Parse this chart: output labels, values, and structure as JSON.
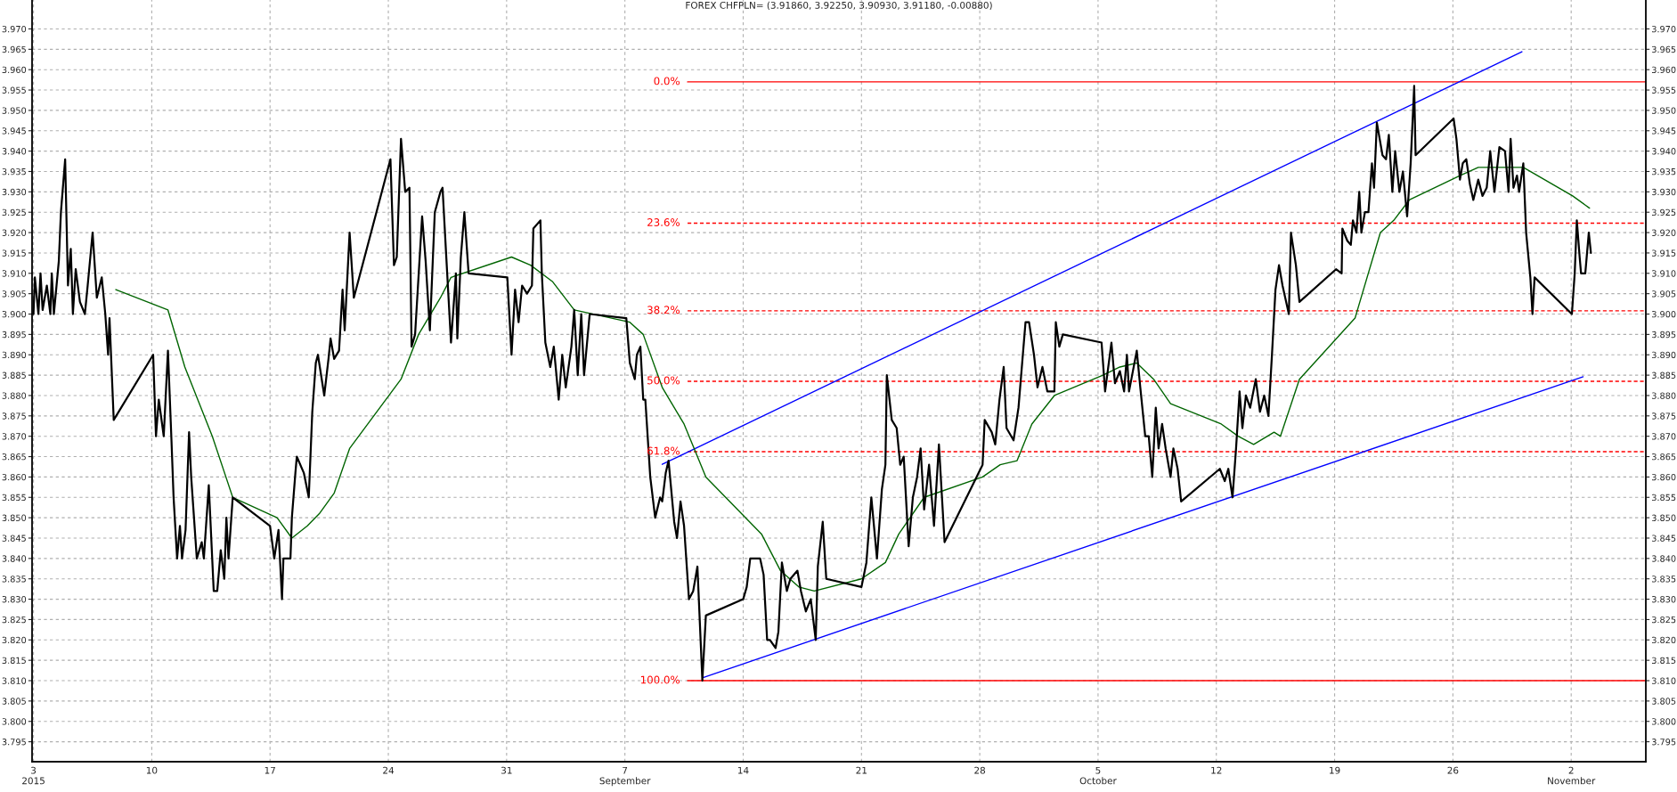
{
  "chart_data": {
    "type": "line",
    "title": "FOREX CHFPLN= (3.91860, 3.92250, 3.90930, 3.91180, -0.00880)",
    "xlim": [
      "2015-08-02T22:00",
      "2015-11-06T10:00"
    ],
    "xticks": [
      {
        "value": "2015-08-03",
        "label": "3\n2015"
      },
      {
        "value": "2015-08-10",
        "label": "10"
      },
      {
        "value": "2015-08-17",
        "label": "17"
      },
      {
        "value": "2015-08-24",
        "label": "24"
      },
      {
        "value": "2015-08-31",
        "label": "31"
      },
      {
        "value": "2015-09-07",
        "label": "7\nSeptember"
      },
      {
        "value": "2015-09-14",
        "label": "14"
      },
      {
        "value": "2015-09-21",
        "label": "21"
      },
      {
        "value": "2015-09-28",
        "label": "28"
      },
      {
        "value": "2015-10-05",
        "label": "5\nOctober"
      },
      {
        "value": "2015-10-12",
        "label": "12"
      },
      {
        "value": "2015-10-19",
        "label": "19"
      },
      {
        "value": "2015-10-26",
        "label": "26"
      },
      {
        "value": "2015-11-02",
        "label": "2\nNovember"
      }
    ],
    "ylim": [
      3.7901,
      3.9771
    ],
    "yticks": [
      {
        "value": 3.795,
        "label": "3.795"
      },
      {
        "value": 3.8,
        "label": "3.800"
      },
      {
        "value": 3.805,
        "label": "3.805"
      },
      {
        "value": 3.81,
        "label": "3.810"
      },
      {
        "value": 3.815,
        "label": "3.815"
      },
      {
        "value": 3.82,
        "label": "3.820"
      },
      {
        "value": 3.825,
        "label": "3.825"
      },
      {
        "value": 3.83,
        "label": "3.830"
      },
      {
        "value": 3.835,
        "label": "3.835"
      },
      {
        "value": 3.84,
        "label": "3.840"
      },
      {
        "value": 3.845,
        "label": "3.845"
      },
      {
        "value": 3.85,
        "label": "3.850"
      },
      {
        "value": 3.855,
        "label": "3.855"
      },
      {
        "value": 3.86,
        "label": "3.860"
      },
      {
        "value": 3.865,
        "label": "3.865"
      },
      {
        "value": 3.87,
        "label": "3.870"
      },
      {
        "value": 3.875,
        "label": "3.875"
      },
      {
        "value": 3.88,
        "label": "3.880"
      },
      {
        "value": 3.885,
        "label": "3.885"
      },
      {
        "value": 3.89,
        "label": "3.890"
      },
      {
        "value": 3.895,
        "label": "3.895"
      },
      {
        "value": 3.9,
        "label": "3.900"
      },
      {
        "value": 3.905,
        "label": "3.905"
      },
      {
        "value": 3.91,
        "label": "3.910"
      },
      {
        "value": 3.915,
        "label": "3.915"
      },
      {
        "value": 3.92,
        "label": "3.920"
      },
      {
        "value": 3.925,
        "label": "3.925"
      },
      {
        "value": 3.93,
        "label": "3.930"
      },
      {
        "value": 3.935,
        "label": "3.935"
      },
      {
        "value": 3.94,
        "label": "3.940"
      },
      {
        "value": 3.945,
        "label": "3.945"
      },
      {
        "value": 3.95,
        "label": "3.950"
      },
      {
        "value": 3.955,
        "label": "3.955"
      },
      {
        "value": 3.96,
        "label": "3.960"
      },
      {
        "value": 3.965,
        "label": "3.965"
      },
      {
        "value": 3.97,
        "label": "3.970"
      }
    ],
    "y2lim": [
      3.7901,
      3.9771
    ],
    "y2ticks": [
      {
        "value": 3.795,
        "label": "3.795"
      },
      {
        "value": 3.8,
        "label": "3.800"
      },
      {
        "value": 3.805,
        "label": "3.805"
      },
      {
        "value": 3.81,
        "label": "3.810"
      },
      {
        "value": 3.815,
        "label": "3.815"
      },
      {
        "value": 3.82,
        "label": "3.820"
      },
      {
        "value": 3.825,
        "label": "3.825"
      },
      {
        "value": 3.83,
        "label": "3.830"
      },
      {
        "value": 3.835,
        "label": "3.835"
      },
      {
        "value": 3.84,
        "label": "3.840"
      },
      {
        "value": 3.845,
        "label": "3.845"
      },
      {
        "value": 3.85,
        "label": "3.850"
      },
      {
        "value": 3.855,
        "label": "3.855"
      },
      {
        "value": 3.86,
        "label": "3.860"
      },
      {
        "value": 3.865,
        "label": "3.865"
      },
      {
        "value": 3.87,
        "label": "3.870"
      },
      {
        "value": 3.875,
        "label": "3.875"
      },
      {
        "value": 3.88,
        "label": "3.880"
      },
      {
        "value": 3.885,
        "label": "3.885"
      },
      {
        "value": 3.89,
        "label": "3.890"
      },
      {
        "value": 3.895,
        "label": "3.895"
      },
      {
        "value": 3.9,
        "label": "3.900"
      },
      {
        "value": 3.905,
        "label": "3.905"
      },
      {
        "value": 3.91,
        "label": "3.910"
      },
      {
        "value": 3.915,
        "label": "3.915"
      },
      {
        "value": 3.92,
        "label": "3.920"
      },
      {
        "value": 3.925,
        "label": "3.925"
      },
      {
        "value": 3.93,
        "label": "3.930"
      },
      {
        "value": 3.935,
        "label": "3.935"
      },
      {
        "value": 3.94,
        "label": "3.940"
      },
      {
        "value": 3.945,
        "label": "3.945"
      },
      {
        "value": 3.95,
        "label": "3.950"
      },
      {
        "value": 3.955,
        "label": "3.955"
      },
      {
        "value": 3.96,
        "label": "3.960"
      },
      {
        "value": 3.965,
        "label": "3.965"
      },
      {
        "value": 3.97,
        "label": "3.970"
      }
    ],
    "grid": true,
    "series": [
      {
        "color": "#ff0000",
        "name": "0.0%",
        "line_style": "solid",
        "x": [
          "2015-09-10T17:00",
          "2015-11-06T10:00"
        ],
        "values": [
          3.957,
          3.957
        ]
      },
      {
        "color": "#ff0000",
        "name": "23.6%",
        "line_style": "dashed",
        "x": [
          "2015-09-10T17:00",
          "2015-11-06T10:00"
        ],
        "values": [
          3.9223,
          3.9223
        ]
      },
      {
        "color": "#ff0000",
        "name": "38.2%",
        "line_style": "dashed",
        "x": [
          "2015-09-10T17:00",
          "2015-11-06T10:00"
        ],
        "values": [
          3.9008,
          3.9008
        ]
      },
      {
        "color": "#ff0000",
        "name": "50.0%",
        "line_style": "dashed",
        "x": [
          "2015-09-10T17:00",
          "2015-11-06T10:00"
        ],
        "values": [
          3.8835,
          3.8835
        ]
      },
      {
        "color": "#ff0000",
        "name": "61.8%",
        "line_style": "dashed",
        "x": [
          "2015-09-10T17:00",
          "2015-11-06T10:00"
        ],
        "values": [
          3.8662,
          3.8662
        ]
      },
      {
        "color": "#ff0000",
        "name": "100.0%",
        "line_style": "solid",
        "x": [
          "2015-09-10T17:00",
          "2015-11-06T10:00"
        ],
        "values": [
          3.81,
          3.81
        ]
      },
      {
        "color": "#0000ff",
        "line_style": "solid",
        "x": [
          "2015-09-09T05:00",
          "2015-10-30T02:00"
        ],
        "values": [
          3.8631,
          3.9644
        ]
      },
      {
        "color": "#0000ff",
        "line_style": "solid",
        "x": [
          "2015-09-11T14:00",
          "2015-11-02T17:00"
        ],
        "values": [
          3.8107,
          3.8846
        ]
      },
      {
        "color": "#006400",
        "line_style": "solid",
        "x": [
          "2015-08-07T21:00",
          "2015-08-10T23:00",
          "2015-08-11T23:00",
          "2015-08-13T14:00",
          "2015-08-14T19:00",
          "2015-08-17T10:00",
          "2015-08-18T07:00",
          "2015-08-19T05:00",
          "2015-08-19T22:00",
          "2015-08-20T19:00",
          "2015-08-21T17:00",
          "2015-08-24T18:00",
          "2015-08-25T19:00",
          "2015-08-27T02:00",
          "2015-08-27T17:00",
          "2015-08-31T07:00",
          "2015-09-01T10:00",
          "2015-09-02T17:00",
          "2015-09-04T00:00",
          "2015-09-07T07:00",
          "2015-09-08T02:00",
          "2015-09-09T05:00",
          "2015-09-10T12:00",
          "2015-09-11T19:00",
          "2015-09-15T02:00",
          "2015-09-16T05:00",
          "2015-09-17T07:00",
          "2015-09-18T05:00",
          "2015-09-21T00:00",
          "2015-09-22T10:00",
          "2015-09-23T05:00",
          "2015-09-24T17:00",
          "2015-09-28T04:00",
          "2015-09-29T05:00",
          "2015-09-30T05:00",
          "2015-10-01T02:00",
          "2015-10-02T10:00",
          "2015-10-05T07:00",
          "2015-10-06T07:00",
          "2015-10-07T07:00",
          "2015-10-08T07:00",
          "2015-10-09T07:00",
          "2015-10-12T07:00",
          "2015-10-13T07:00",
          "2015-10-14T05:00",
          "2015-10-15T10:00",
          "2015-10-15T19:00",
          "2015-10-16T22:00",
          "2015-10-20T05:00",
          "2015-10-21T17:00",
          "2015-10-22T12:00",
          "2015-10-23T10:00",
          "2015-10-26T10:00",
          "2015-10-27T12:00",
          "2015-10-28T12:00",
          "2015-10-30T04:00",
          "2015-11-02T02:00",
          "2015-11-03T02:00"
        ],
        "values": [
          3.906,
          3.901,
          3.887,
          3.87,
          3.855,
          3.85,
          3.845,
          3.848,
          3.851,
          3.856,
          3.867,
          3.884,
          3.895,
          3.904,
          3.909,
          3.914,
          3.912,
          3.908,
          3.901,
          3.898,
          3.895,
          3.882,
          3.873,
          3.86,
          3.846,
          3.837,
          3.833,
          3.832,
          3.835,
          3.839,
          3.846,
          3.855,
          3.86,
          3.863,
          3.864,
          3.873,
          3.88,
          3.885,
          3.887,
          3.888,
          3.884,
          3.878,
          3.873,
          3.87,
          3.868,
          3.871,
          3.87,
          3.884,
          3.899,
          3.92,
          3.923,
          3.928,
          3.934,
          3.936,
          3.936,
          3.936,
          3.929,
          3.926
        ]
      },
      {
        "color": "#000000",
        "line_style": "solid",
        "x": [
          "2015-08-03T00:00",
          "2015-08-03T02:00",
          "2015-08-03T07:00",
          "2015-08-03T10:00",
          "2015-08-03T13:00",
          "2015-08-03T19:00",
          "2015-08-04T00:00",
          "2015-08-04T02:00",
          "2015-08-04T05:00",
          "2015-08-04T12:00",
          "2015-08-04T15:00",
          "2015-08-04T21:00",
          "2015-08-05T01:00",
          "2015-08-05T05:00",
          "2015-08-05T08:00",
          "2015-08-05T12:00",
          "2015-08-05T18:00",
          "2015-08-06T01:00",
          "2015-08-06T05:00",
          "2015-08-06T12:00",
          "2015-08-06T18:00",
          "2015-08-07T01:00",
          "2015-08-07T06:00",
          "2015-08-07T10:00",
          "2015-08-07T12:00",
          "2015-08-07T18:00",
          "2015-08-10T02:00",
          "2015-08-10T06:00",
          "2015-08-10T10:00",
          "2015-08-10T17:00",
          "2015-08-10T23:00",
          "2015-08-11T04:00",
          "2015-08-11T07:00",
          "2015-08-11T12:00",
          "2015-08-11T16:00",
          "2015-08-11T19:00",
          "2015-08-12T00:00",
          "2015-08-12T05:00",
          "2015-08-12T08:00",
          "2015-08-12T16:00",
          "2015-08-12T23:00",
          "2015-08-13T02:00",
          "2015-08-13T09:00",
          "2015-08-13T16:00",
          "2015-08-13T21:00",
          "2015-08-14T02:00",
          "2015-08-14T07:00",
          "2015-08-14T10:00",
          "2015-08-14T13:00",
          "2015-08-14T19:00",
          "2015-08-17T00:00",
          "2015-08-17T06:00",
          "2015-08-17T12:00",
          "2015-08-17T17:00",
          "2015-08-17T19:00",
          "2015-08-18T05:00",
          "2015-08-18T07:00",
          "2015-08-18T12:00",
          "2015-08-18T14:00",
          "2015-08-19T00:00",
          "2015-08-19T07:00",
          "2015-08-19T12:00",
          "2015-08-19T17:00",
          "2015-08-19T20:00",
          "2015-08-20T05:00",
          "2015-08-20T11:00",
          "2015-08-20T14:00",
          "2015-08-20T19:00",
          "2015-08-21T02:00",
          "2015-08-21T07:00",
          "2015-08-21T10:00",
          "2015-08-21T17:00",
          "2015-08-21T23:00",
          "2015-08-24T03:00",
          "2015-08-24T08:00",
          "2015-08-24T12:00",
          "2015-08-24T18:00",
          "2015-08-25T00:00",
          "2015-08-25T06:00",
          "2015-08-25T09:00",
          "2015-08-25T14:00",
          "2015-08-26T00:00",
          "2015-08-26T05:00",
          "2015-08-26T11:00",
          "2015-08-26T18:00",
          "2015-08-27T02:00",
          "2015-08-27T05:00",
          "2015-08-27T10:00",
          "2015-08-27T17:00",
          "2015-08-28T00:00",
          "2015-08-28T02:00",
          "2015-08-28T07:00",
          "2015-08-28T12:00",
          "2015-08-28T18:00",
          "2015-08-31T01:00",
          "2015-08-31T07:00",
          "2015-08-31T12:00",
          "2015-08-31T17:00",
          "2015-08-31T22:00",
          "2015-09-01T05:00",
          "2015-09-01T12:00",
          "2015-09-01T14:00",
          "2015-09-02T00:00",
          "2015-09-02T02:00",
          "2015-09-02T07:00",
          "2015-09-02T14:00",
          "2015-09-02T19:00",
          "2015-09-03T02:00",
          "2015-09-03T07:00",
          "2015-09-03T12:00",
          "2015-09-03T20:00",
          "2015-09-04T00:00",
          "2015-09-04T05:00",
          "2015-09-04T10:00",
          "2015-09-04T14:00",
          "2015-09-04T22:00",
          "2015-09-07T02:00",
          "2015-09-07T07:00",
          "2015-09-07T14:00",
          "2015-09-07T17:00",
          "2015-09-07T22:00",
          "2015-09-08T02:00",
          "2015-09-08T05:00",
          "2015-09-08T12:00",
          "2015-09-08T19:00",
          "2015-09-09T02:00",
          "2015-09-09T05:00",
          "2015-09-09T10:00",
          "2015-09-09T14:00",
          "2015-09-09T22:00",
          "2015-09-10T02:00",
          "2015-09-10T07:00",
          "2015-09-10T12:00",
          "2015-09-10T19:00",
          "2015-09-11T01:00",
          "2015-09-11T07:00",
          "2015-09-11T10:00",
          "2015-09-11T14:00",
          "2015-09-11T19:00",
          "2015-09-14T00:00",
          "2015-09-14T05:00",
          "2015-09-14T10:00",
          "2015-09-14T19:00",
          "2015-09-15T00:00",
          "2015-09-15T05:00",
          "2015-09-15T10:00",
          "2015-09-15T14:00",
          "2015-09-15T22:00",
          "2015-09-16T02:00",
          "2015-09-16T07:00",
          "2015-09-16T14:00",
          "2015-09-16T19:00",
          "2015-09-17T05:00",
          "2015-09-17T10:00",
          "2015-09-17T17:00",
          "2015-09-18T00:00",
          "2015-09-18T07:00",
          "2015-09-18T10:00",
          "2015-09-18T17:00",
          "2015-09-18T22:00",
          "2015-09-21T00:00",
          "2015-09-21T07:00",
          "2015-09-21T14:00",
          "2015-09-21T22:00",
          "2015-09-22T05:00",
          "2015-09-22T10:00",
          "2015-09-22T12:00",
          "2015-09-22T19:00",
          "2015-09-23T02:00",
          "2015-09-23T07:00",
          "2015-09-23T12:00",
          "2015-09-23T19:00",
          "2015-09-24T01:00",
          "2015-09-24T07:00",
          "2015-09-24T12:00",
          "2015-09-24T17:00",
          "2015-09-25T00:00",
          "2015-09-25T07:00",
          "2015-09-25T14:00",
          "2015-09-25T22:00",
          "2015-09-28T04:00",
          "2015-09-28T07:00",
          "2015-09-28T17:00",
          "2015-09-28T22:00",
          "2015-09-29T04:00",
          "2015-09-29T10:00",
          "2015-09-29T14:00",
          "2015-09-30T00:00",
          "2015-09-30T07:00",
          "2015-09-30T17:00",
          "2015-09-30T22:00",
          "2015-10-01T05:00",
          "2015-10-01T10:00",
          "2015-10-01T17:00",
          "2015-10-02T00:00",
          "2015-10-02T10:00",
          "2015-10-02T12:00",
          "2015-10-02T17:00",
          "2015-10-02T22:00",
          "2015-10-05T05:00",
          "2015-10-05T10:00",
          "2015-10-05T19:00",
          "2015-10-06T00:00",
          "2015-10-06T07:00",
          "2015-10-06T13:00",
          "2015-10-06T17:00",
          "2015-10-06T20:00",
          "2015-10-07T07:00",
          "2015-10-07T12:00",
          "2015-10-07T19:00",
          "2015-10-08T00:00",
          "2015-10-08T05:00",
          "2015-10-08T10:00",
          "2015-10-08T14:00",
          "2015-10-08T19:00",
          "2015-10-09T00:00",
          "2015-10-09T07:00",
          "2015-10-09T11:00",
          "2015-10-09T17:00",
          "2015-10-09T22:00",
          "2015-10-12T05:00",
          "2015-10-12T12:00",
          "2015-10-12T17:00",
          "2015-10-12T23:00",
          "2015-10-13T04:00",
          "2015-10-13T09:00",
          "2015-10-13T13:00",
          "2015-10-13T18:00",
          "2015-10-14T00:00",
          "2015-10-14T08:00",
          "2015-10-14T14:00",
          "2015-10-14T20:00",
          "2015-10-15T02:00",
          "2015-10-15T07:00",
          "2015-10-15T12:00",
          "2015-10-15T17:00",
          "2015-10-15T22:00",
          "2015-10-16T07:00",
          "2015-10-16T10:00",
          "2015-10-16T17:00",
          "2015-10-16T22:00",
          "2015-10-19T02:00",
          "2015-10-19T10:00",
          "2015-10-19T11:00",
          "2015-10-19T18:00",
          "2015-10-19T23:00",
          "2015-10-20T02:00",
          "2015-10-20T07:00",
          "2015-10-20T11:00",
          "2015-10-20T14:00",
          "2015-10-20T19:00",
          "2015-10-21T00:00",
          "2015-10-21T05:00",
          "2015-10-21T08:00",
          "2015-10-21T12:00",
          "2015-10-21T20:00",
          "2015-10-22T01:00",
          "2015-10-22T05:00",
          "2015-10-22T10:00",
          "2015-10-22T14:00",
          "2015-10-22T20:00",
          "2015-10-23T01:00",
          "2015-10-23T07:00",
          "2015-10-23T12:00",
          "2015-10-23T17:00",
          "2015-10-23T19:00",
          "2015-10-26T01:00",
          "2015-10-26T05:00",
          "2015-10-26T10:00",
          "2015-10-26T14:00",
          "2015-10-26T19:00",
          "2015-10-27T00:00",
          "2015-10-27T05:00",
          "2015-10-27T12:00",
          "2015-10-27T18:00",
          "2015-10-28T00:00",
          "2015-10-28T05:00",
          "2015-10-28T11:00",
          "2015-10-28T18:00",
          "2015-10-29T02:00",
          "2015-10-29T07:00",
          "2015-10-29T10:00",
          "2015-10-29T14:00",
          "2015-10-29T19:00",
          "2015-10-29T22:00",
          "2015-10-30T04:00",
          "2015-10-30T08:00",
          "2015-10-30T14:00",
          "2015-10-30T17:00",
          "2015-10-30T20:00",
          "2015-11-02T01:00",
          "2015-11-02T05:00",
          "2015-11-02T08:00",
          "2015-11-02T12:00",
          "2015-11-02T14:00",
          "2015-11-02T20:00",
          "2015-11-03T01:00",
          "2015-11-03T04:00"
        ],
        "values": [
          3.9,
          3.909,
          3.9,
          3.91,
          3.901,
          3.907,
          3.9,
          3.91,
          3.9,
          3.913,
          3.925,
          3.938,
          3.907,
          3.916,
          3.9,
          3.911,
          3.903,
          3.9,
          3.907,
          3.92,
          3.904,
          3.909,
          3.9,
          3.89,
          3.899,
          3.874,
          3.89,
          3.87,
          3.879,
          3.87,
          3.891,
          3.869,
          3.855,
          3.84,
          3.848,
          3.84,
          3.847,
          3.871,
          3.86,
          3.84,
          3.844,
          3.84,
          3.858,
          3.832,
          3.832,
          3.842,
          3.835,
          3.85,
          3.84,
          3.855,
          3.848,
          3.84,
          3.847,
          3.83,
          3.84,
          3.84,
          3.85,
          3.861,
          3.865,
          3.861,
          3.855,
          3.876,
          3.888,
          3.89,
          3.88,
          3.889,
          3.894,
          3.889,
          3.891,
          3.906,
          3.896,
          3.92,
          3.904,
          3.938,
          3.912,
          3.914,
          3.943,
          3.93,
          3.931,
          3.892,
          3.895,
          3.924,
          3.913,
          3.896,
          3.925,
          3.93,
          3.931,
          3.915,
          3.893,
          3.91,
          3.894,
          3.914,
          3.925,
          3.91,
          3.909,
          3.89,
          3.906,
          3.898,
          3.907,
          3.905,
          3.907,
          3.921,
          3.923,
          3.91,
          3.893,
          3.887,
          3.892,
          3.879,
          3.89,
          3.882,
          3.892,
          3.901,
          3.885,
          3.9,
          3.885,
          3.9,
          3.899,
          3.888,
          3.884,
          3.89,
          3.892,
          3.879,
          3.879,
          3.86,
          3.85,
          3.855,
          3.854,
          3.861,
          3.864,
          3.849,
          3.845,
          3.854,
          3.848,
          3.83,
          3.832,
          3.838,
          3.826,
          3.81,
          3.826,
          3.83,
          3.833,
          3.84,
          3.84,
          3.84,
          3.836,
          3.82,
          3.82,
          3.818,
          3.822,
          3.839,
          3.832,
          3.835,
          3.837,
          3.832,
          3.827,
          3.83,
          3.82,
          3.838,
          3.849,
          3.835,
          3.833,
          3.839,
          3.855,
          3.84,
          3.857,
          3.863,
          3.885,
          3.874,
          3.872,
          3.863,
          3.865,
          3.843,
          3.855,
          3.86,
          3.867,
          3.852,
          3.863,
          3.848,
          3.868,
          3.844,
          3.863,
          3.874,
          3.871,
          3.868,
          3.879,
          3.887,
          3.872,
          3.869,
          3.877,
          3.898,
          3.898,
          3.89,
          3.882,
          3.887,
          3.881,
          3.881,
          3.898,
          3.892,
          3.895,
          3.893,
          3.881,
          3.893,
          3.883,
          3.886,
          3.881,
          3.89,
          3.881,
          3.891,
          3.882,
          3.87,
          3.87,
          3.86,
          3.877,
          3.867,
          3.873,
          3.867,
          3.86,
          3.867,
          3.862,
          3.854,
          3.862,
          3.859,
          3.862,
          3.855,
          3.867,
          3.881,
          3.872,
          3.88,
          3.877,
          3.884,
          3.876,
          3.88,
          3.875,
          3.89,
          3.906,
          3.912,
          3.907,
          3.9,
          3.92,
          3.912,
          3.903,
          3.911,
          3.91,
          3.921,
          3.918,
          3.917,
          3.923,
          3.92,
          3.93,
          3.92,
          3.925,
          3.925,
          3.937,
          3.931,
          3.947,
          3.939,
          3.938,
          3.944,
          3.93,
          3.94,
          3.93,
          3.935,
          3.924,
          3.937,
          3.956,
          3.939,
          3.948,
          3.943,
          3.933,
          3.937,
          3.938,
          3.932,
          3.928,
          3.933,
          3.929,
          3.931,
          3.94,
          3.93,
          3.941,
          3.94,
          3.93,
          3.943,
          3.931,
          3.934,
          3.93,
          3.937,
          3.92,
          3.909,
          3.9,
          3.909,
          3.9,
          3.91,
          3.923,
          3.914,
          3.91,
          3.91,
          3.92,
          3.915
        ]
      }
    ]
  }
}
